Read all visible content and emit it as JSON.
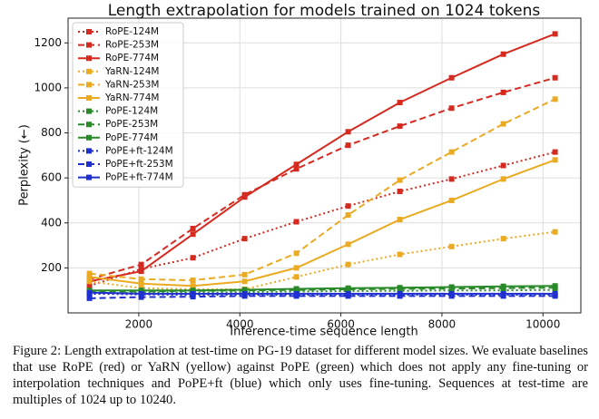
{
  "chart_data": {
    "type": "line",
    "title": "Length extrapolation for models trained on 1024 tokens",
    "x_label": "Inference-time sequence length",
    "y_label": "Perplexity (←)",
    "x": [
      1024,
      2048,
      3072,
      4096,
      5120,
      6144,
      7168,
      8192,
      9216,
      10240
    ],
    "xlim": [
      600,
      10750
    ],
    "xticks": [
      2000,
      4000,
      6000,
      8000,
      10000
    ],
    "ylim": [
      0,
      1310
    ],
    "yticks": [
      200,
      400,
      600,
      800,
      1000,
      1200
    ],
    "grid": true,
    "legend": "upper-left",
    "marker": "square",
    "series": [
      {
        "name": "RoPE-124M",
        "color": "#d42a20",
        "linestyle": "dotted",
        "values": [
          120,
          195,
          245,
          330,
          405,
          475,
          540,
          595,
          655,
          715
        ]
      },
      {
        "name": "RoPE-253M",
        "color": "#d42a20",
        "linestyle": "dashed",
        "values": [
          150,
          215,
          375,
          525,
          640,
          745,
          830,
          910,
          980,
          1045
        ]
      },
      {
        "name": "RoPE-774M",
        "color": "#d42a20",
        "linestyle": "solid",
        "values": [
          140,
          185,
          350,
          515,
          660,
          805,
          935,
          1045,
          1150,
          1240
        ]
      },
      {
        "name": "YaRN-124M",
        "color": "#eaaa22",
        "linestyle": "dotted",
        "values": [
          140,
          110,
          105,
          105,
          160,
          215,
          260,
          295,
          330,
          360
        ]
      },
      {
        "name": "YaRN-253M",
        "color": "#eaaa22",
        "linestyle": "dashed",
        "values": [
          175,
          150,
          145,
          170,
          265,
          435,
          590,
          715,
          840,
          950
        ]
      },
      {
        "name": "YaRN-774M",
        "color": "#eaaa22",
        "linestyle": "solid",
        "values": [
          160,
          130,
          120,
          140,
          200,
          305,
          415,
          500,
          595,
          680
        ]
      },
      {
        "name": "PoPE-124M",
        "color": "#2a8a2a",
        "linestyle": "dotted",
        "values": [
          85,
          90,
          90,
          92,
          95,
          97,
          98,
          100,
          100,
          102
        ]
      },
      {
        "name": "PoPE-253M",
        "color": "#2a8a2a",
        "linestyle": "dashed",
        "values": [
          95,
          95,
          98,
          100,
          102,
          105,
          107,
          108,
          110,
          112
        ]
      },
      {
        "name": "PoPE-774M",
        "color": "#2a8a2a",
        "linestyle": "solid",
        "values": [
          100,
          100,
          100,
          103,
          107,
          110,
          112,
          115,
          118,
          120
        ]
      },
      {
        "name": "PoPE+ft-124M",
        "color": "#2030d0",
        "linestyle": "dotted",
        "values": [
          85,
          82,
          80,
          80,
          80,
          80,
          80,
          80,
          80,
          80
        ]
      },
      {
        "name": "PoPE+ft-253M",
        "color": "#2030d0",
        "linestyle": "dashed",
        "values": [
          65,
          70,
          72,
          75,
          75,
          75,
          75,
          75,
          75,
          75
        ]
      },
      {
        "name": "PoPE+ft-774M",
        "color": "#2030d0",
        "linestyle": "solid",
        "values": [
          90,
          85,
          85,
          85,
          85,
          85,
          85,
          85,
          85,
          85
        ]
      }
    ]
  },
  "caption": "Figure 2: Length extrapolation at test-time on PG-19 dataset for different model sizes. We evaluate baselines that use RoPE (red) or YaRN (yellow) against PoPE (green) which does not apply any fine-tuning or interpolation techniques and PoPE+ft (blue) which only uses fine-tuning. Sequences at test-time are multiples of 1024 up to 10240."
}
